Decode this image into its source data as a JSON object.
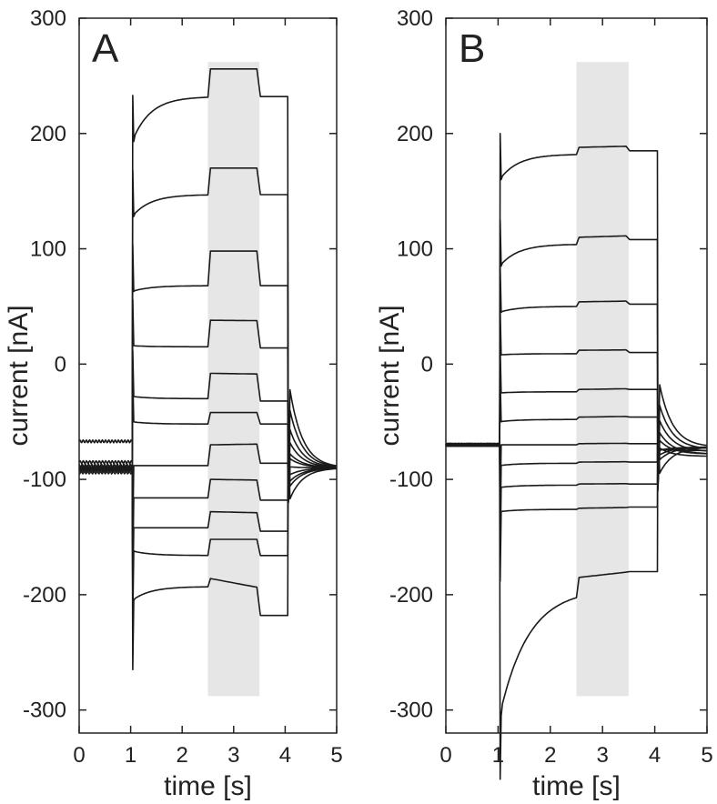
{
  "colors": {
    "trace": "#1a1a1a",
    "highlight": "#e6e6e6",
    "axis": "#222222"
  },
  "chart_data": [
    {
      "type": "line",
      "panel_label": "A",
      "xlabel": "time [s]",
      "ylabel": "current [nA]",
      "xlim": [
        0,
        5
      ],
      "ylim": [
        -320,
        300
      ],
      "xticks": [
        "0",
        "1",
        "2",
        "3",
        "4",
        "5"
      ],
      "yticks": [
        "300",
        "200",
        "100",
        "0",
        "-100",
        "-200",
        "-300"
      ],
      "highlight": {
        "x": [
          2.5,
          3.5
        ],
        "y": [
          -288,
          262
        ]
      },
      "step": {
        "on": 1.03,
        "off": 4.05
      },
      "traces": [
        {
          "pre": -67,
          "start": 193,
          "steady": 232,
          "stim": 256,
          "end": 232,
          "tail": -90
        },
        {
          "pre": -90,
          "start": 128,
          "steady": 147,
          "stim": 170,
          "end": 147,
          "tail": -90
        },
        {
          "pre": -88,
          "start": 63,
          "steady": 68,
          "stim": 98,
          "end": 68,
          "tail": -90
        },
        {
          "pre": -90,
          "start": 16,
          "steady": 15,
          "stim": 38,
          "end": 14,
          "tail": -90
        },
        {
          "pre": -90,
          "start": -28,
          "steady": -30,
          "stim": -8,
          "end": -32,
          "tail": -90
        },
        {
          "pre": -90,
          "start": -50,
          "steady": -52,
          "stim": -42,
          "end": -52,
          "tail": -90
        },
        {
          "pre": -85,
          "start": -88,
          "steady": -88,
          "stim": -70,
          "end": -86,
          "tail": -90
        },
        {
          "pre": -90,
          "start": -116,
          "steady": -116,
          "stim": -100,
          "end": -118,
          "tail": -90
        },
        {
          "pre": -92,
          "start": -142,
          "steady": -142,
          "stim": -128,
          "end": -145,
          "tail": -90
        },
        {
          "pre": -92,
          "start": -162,
          "steady": -166,
          "stim": -152,
          "end": -166,
          "tail": -90
        },
        {
          "pre": -94,
          "start": -205,
          "steady": -193,
          "stim": -186,
          "end": -218,
          "tail": -90
        }
      ]
    },
    {
      "type": "line",
      "panel_label": "B",
      "xlabel": "time [s]",
      "ylabel": "current [nA]",
      "xlim": [
        0,
        5
      ],
      "ylim": [
        -320,
        300
      ],
      "xticks": [
        "0",
        "1",
        "2",
        "3",
        "4",
        "5"
      ],
      "yticks": [
        "300",
        "200",
        "100",
        "0",
        "-100",
        "-200",
        "-300"
      ],
      "highlight": {
        "x": [
          2.5,
          3.5
        ],
        "y": [
          -288,
          262
        ]
      },
      "step": {
        "on": 1.03,
        "off": 4.05
      },
      "traces": [
        {
          "pre": -70,
          "start": 160,
          "steady": 182,
          "stim": 188,
          "end": 185,
          "tail": -72
        },
        {
          "pre": -70,
          "start": 85,
          "steady": 104,
          "stim": 110,
          "end": 108,
          "tail": -74
        },
        {
          "pre": -70,
          "start": 45,
          "steady": 50,
          "stim": 54,
          "end": 52,
          "tail": -76
        },
        {
          "pre": -70,
          "start": 8,
          "steady": 9,
          "stim": 12,
          "end": 10,
          "tail": -78
        },
        {
          "pre": -70,
          "start": -25,
          "steady": -24,
          "stim": -22,
          "end": -22,
          "tail": -78
        },
        {
          "pre": -70,
          "start": -50,
          "steady": -48,
          "stim": -46,
          "end": -46,
          "tail": -80
        },
        {
          "pre": -70,
          "start": -70,
          "steady": -70,
          "stim": -69,
          "end": -69,
          "tail": -75
        },
        {
          "pre": -70,
          "start": -88,
          "steady": -86,
          "stim": -85,
          "end": -85,
          "tail": -72
        },
        {
          "pre": -70,
          "start": -107,
          "steady": -105,
          "stim": -104,
          "end": -104,
          "tail": -72
        },
        {
          "pre": -70,
          "start": -128,
          "steady": -126,
          "stim": -125,
          "end": -124,
          "tail": -72
        },
        {
          "pre": -70,
          "start": -300,
          "steady": -195,
          "stim": -185,
          "end": -180,
          "tail": -72,
          "dip": -305
        }
      ]
    }
  ]
}
